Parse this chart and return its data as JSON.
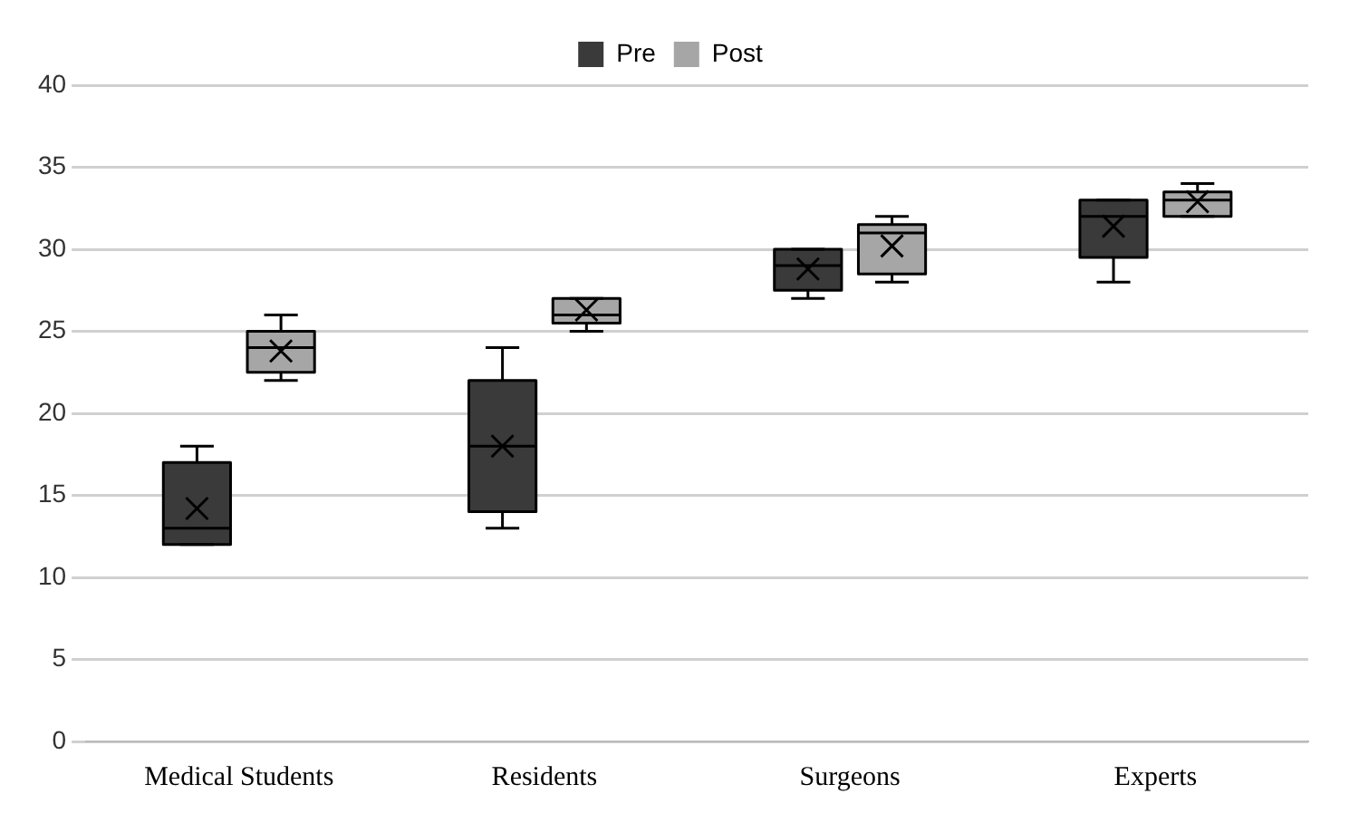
{
  "chart_data": {
    "type": "box",
    "categories": [
      "Medical Students",
      "Residents",
      "Surgeons",
      "Experts"
    ],
    "series": [
      {
        "name": "Pre",
        "color": "#3a3a3a",
        "boxes": [
          {
            "low": 12,
            "q1": 12,
            "median": 13,
            "q3": 17,
            "high": 18,
            "mean": 14.2
          },
          {
            "low": 13,
            "q1": 14,
            "median": 18,
            "q3": 22,
            "high": 24,
            "mean": 18
          },
          {
            "low": 27,
            "q1": 27.5,
            "median": 29,
            "q3": 30,
            "high": 30,
            "mean": 28.8
          },
          {
            "low": 28,
            "q1": 29.5,
            "median": 32,
            "q3": 33,
            "high": 33,
            "mean": 31.4
          }
        ]
      },
      {
        "name": "Post",
        "color": "#a6a6a6",
        "boxes": [
          {
            "low": 22,
            "q1": 22.5,
            "median": 24,
            "q3": 25,
            "high": 26,
            "mean": 23.8
          },
          {
            "low": 25,
            "q1": 25.5,
            "median": 26,
            "q3": 27,
            "high": 27,
            "mean": 26.3
          },
          {
            "low": 28,
            "q1": 28.5,
            "median": 31,
            "q3": 31.5,
            "high": 32,
            "mean": 30.2
          },
          {
            "low": 32,
            "q1": 32,
            "median": 33,
            "q3": 33.5,
            "high": 34,
            "mean": 32.9
          }
        ]
      }
    ],
    "ylim": [
      0,
      40
    ],
    "yticks": [
      0,
      5,
      10,
      15,
      20,
      25,
      30,
      35,
      40
    ],
    "grid": "y",
    "legend": "top"
  }
}
